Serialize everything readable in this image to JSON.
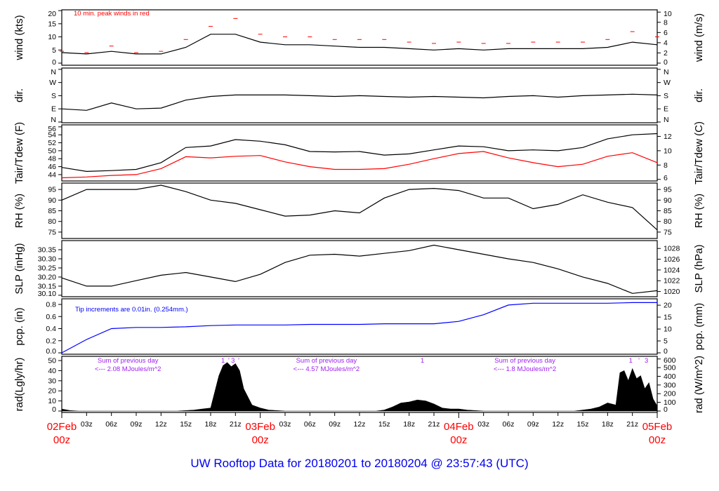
{
  "title": "UW Rooftop Data for 20180201  to  20180204 @ 23:57:43  (UTC)",
  "colors": {
    "primary": "#000000",
    "peak": "#ff0000",
    "dewpoint": "#ff0000",
    "precip": "#0000ff",
    "title": "#0000ee",
    "day_labels": "#ff0000",
    "annotations": "#a020f0"
  },
  "x_axis": {
    "hour_ticks": [
      {
        "h": 3,
        "label": "03z"
      },
      {
        "h": 6,
        "label": "06z"
      },
      {
        "h": 9,
        "label": "09z"
      },
      {
        "h": 12,
        "label": "12z"
      },
      {
        "h": 15,
        "label": "15z"
      },
      {
        "h": 18,
        "label": "18z"
      },
      {
        "h": 21,
        "label": "21z"
      },
      {
        "h": 27,
        "label": "03z"
      },
      {
        "h": 30,
        "label": "06z"
      },
      {
        "h": 33,
        "label": "09z"
      },
      {
        "h": 36,
        "label": "12z"
      },
      {
        "h": 39,
        "label": "15z"
      },
      {
        "h": 42,
        "label": "18z"
      },
      {
        "h": 45,
        "label": "21z"
      },
      {
        "h": 51,
        "label": "03z"
      },
      {
        "h": 54,
        "label": "06z"
      },
      {
        "h": 57,
        "label": "09z"
      },
      {
        "h": 60,
        "label": "12z"
      },
      {
        "h": 63,
        "label": "15z"
      },
      {
        "h": 66,
        "label": "18z"
      },
      {
        "h": 69,
        "label": "21z"
      }
    ],
    "day_ticks": [
      {
        "h": 0,
        "label": "02Feb",
        "sub": "00z"
      },
      {
        "h": 24,
        "label": "03Feb",
        "sub": "00z"
      },
      {
        "h": 48,
        "label": "04Feb",
        "sub": "00z"
      },
      {
        "h": 72,
        "label": "05Feb",
        "sub": "00z"
      }
    ]
  },
  "chart_data": {
    "type": "line",
    "x_unit": "hours since 02Feb 00z",
    "x": [
      0,
      3,
      6,
      9,
      12,
      15,
      18,
      21,
      24,
      27,
      30,
      33,
      36,
      39,
      42,
      45,
      48,
      51,
      54,
      57,
      60,
      63,
      66,
      69,
      72
    ],
    "xlim": [
      0,
      72
    ],
    "panels": [
      {
        "id": "wind",
        "ylabel_left": "wind (kts)",
        "ylabel_right": "wind (m/s)",
        "ylim": [
          -0.8,
          20.3
        ],
        "left_ticks": [
          {
            "v": 0,
            "label": "0"
          },
          {
            "v": 5,
            "label": "5"
          },
          {
            "v": 10,
            "label": "10"
          },
          {
            "v": 15,
            "label": "15"
          },
          {
            "v": 20,
            "label": "20"
          }
        ],
        "right_ticks": [
          {
            "v": 0,
            "label": "0"
          },
          {
            "v": 2,
            "label": "2"
          },
          {
            "v": 4,
            "label": "4"
          },
          {
            "v": 6,
            "label": "6"
          },
          {
            "v": 8,
            "label": "8"
          },
          {
            "v": 10,
            "label": "10"
          }
        ],
        "legend": "10 min. peak winds in red",
        "series": [
          {
            "name": "wind",
            "style": "line",
            "color": "#000000",
            "values": [
              4,
              3.5,
              4.5,
              3.5,
              3.5,
              6,
              11,
              11,
              8,
              7,
              7,
              6.5,
              6,
              6,
              5.5,
              5,
              5.5,
              5,
              5.5,
              5.5,
              5.5,
              5.5,
              6,
              8,
              7
            ]
          },
          {
            "name": "10 min. peak",
            "style": "dash",
            "color": "#ff0000",
            "values": [
              4.5,
              4,
              6.5,
              4,
              4.5,
              9,
              14,
              17,
              11,
              10,
              10,
              9,
              9,
              9,
              8,
              7.5,
              8,
              7.5,
              7.5,
              8,
              8,
              8,
              9,
              12,
              10
            ]
          }
        ]
      },
      {
        "id": "dir",
        "ylabel_left": "dir.",
        "ylabel_right": "dir.",
        "ylim": [
          -5,
          369
        ],
        "left_ticks": [
          {
            "v": 0,
            "label": "N"
          },
          {
            "v": 90,
            "label": "E"
          },
          {
            "v": 180,
            "label": "S"
          },
          {
            "v": 270,
            "label": "W"
          },
          {
            "v": 360,
            "label": "N"
          }
        ],
        "right_ticks": [
          {
            "v": 0,
            "label": "N"
          },
          {
            "v": 90,
            "label": "E"
          },
          {
            "v": 180,
            "label": "S"
          },
          {
            "v": 270,
            "label": "W"
          },
          {
            "v": 360,
            "label": "N"
          }
        ],
        "series": [
          {
            "name": "direction",
            "style": "line",
            "color": "#000000",
            "values": [
              90,
              80,
              130,
              90,
              95,
              150,
              175,
              185,
              185,
              185,
              180,
              175,
              180,
              175,
              170,
              175,
              170,
              165,
              175,
              180,
              170,
              180,
              185,
              190,
              185
            ]
          }
        ]
      },
      {
        "id": "temp",
        "ylabel_left": "Tair/Tdew (F)",
        "ylabel_right": "Tair/Tdew (C)",
        "ylim": [
          42.4,
          56.5
        ],
        "left_ticks": [
          {
            "v": 44,
            "label": "44"
          },
          {
            "v": 46,
            "label": "46"
          },
          {
            "v": 48,
            "label": "48"
          },
          {
            "v": 50,
            "label": "50"
          },
          {
            "v": 52,
            "label": "52"
          },
          {
            "v": 54,
            "label": "54"
          },
          {
            "v": 56,
            "label": "56"
          }
        ],
        "right_ticks": [
          {
            "v": 6,
            "label": "6"
          },
          {
            "v": 8,
            "label": "8"
          },
          {
            "v": 10,
            "label": "10"
          },
          {
            "v": 12,
            "label": "12"
          }
        ],
        "series": [
          {
            "name": "Tair",
            "style": "line",
            "color": "#000000",
            "values": [
              45.8,
              44.8,
              45,
              45.3,
              47,
              50.8,
              51.2,
              52.8,
              52.4,
              51.5,
              49.8,
              49.7,
              49.8,
              48.9,
              49.2,
              50.2,
              51.2,
              51,
              50,
              50.2,
              50,
              50.8,
              53,
              54,
              54.3
            ]
          },
          {
            "name": "Tdew",
            "style": "line",
            "color": "#ff0000",
            "values": [
              43.2,
              43.4,
              43.8,
              44,
              45.5,
              48.5,
              48.2,
              48.6,
              48.8,
              47.2,
              46,
              45.3,
              45.3,
              45.5,
              46.6,
              48,
              49.3,
              49.8,
              48.2,
              47,
              46,
              46.6,
              48.6,
              49.5,
              47
            ]
          }
        ]
      },
      {
        "id": "rh",
        "ylabel_left": "RH (%)",
        "ylabel_right": "RH (%)",
        "ylim": [
          72,
          98
        ],
        "left_ticks": [
          {
            "v": 75,
            "label": "75"
          },
          {
            "v": 80,
            "label": "80"
          },
          {
            "v": 85,
            "label": "85"
          },
          {
            "v": 90,
            "label": "90"
          },
          {
            "v": 95,
            "label": "95"
          }
        ],
        "right_ticks": [
          {
            "v": 75,
            "label": "75"
          },
          {
            "v": 80,
            "label": "80"
          },
          {
            "v": 85,
            "label": "85"
          },
          {
            "v": 90,
            "label": "90"
          },
          {
            "v": 95,
            "label": "95"
          }
        ],
        "series": [
          {
            "name": "RH",
            "style": "line",
            "color": "#000000",
            "values": [
              90,
              95,
              95,
              95,
              97,
              94,
              90,
              88.5,
              85.5,
              82.5,
              83,
              85,
              84,
              91,
              95,
              95.5,
              94.5,
              91,
              91,
              86,
              88,
              92.5,
              89,
              86.5,
              76
            ]
          }
        ]
      },
      {
        "id": "slp",
        "ylabel_left": "SLP (inHg)",
        "ylabel_right": "SLP (hPa)",
        "ylim": [
          30.092,
          30.4
        ],
        "left_ticks": [
          {
            "v": 30.1,
            "label": "30.10"
          },
          {
            "v": 30.15,
            "label": "30.15"
          },
          {
            "v": 30.2,
            "label": "30.20"
          },
          {
            "v": 30.25,
            "label": "30.25"
          },
          {
            "v": 30.3,
            "label": "30.30"
          },
          {
            "v": 30.35,
            "label": "30.35"
          }
        ],
        "right_ticks": [
          {
            "v": 1020,
            "label": "1020"
          },
          {
            "v": 1022,
            "label": "1022"
          },
          {
            "v": 1024,
            "label": "1024"
          },
          {
            "v": 1026,
            "label": "1026"
          },
          {
            "v": 1028,
            "label": "1028"
          }
        ],
        "series": [
          {
            "name": "SLP",
            "style": "line",
            "color": "#000000",
            "values": [
              30.195,
              30.15,
              30.15,
              30.18,
              30.21,
              30.225,
              30.2,
              30.175,
              30.215,
              30.28,
              30.32,
              30.325,
              30.315,
              30.33,
              30.345,
              30.375,
              30.35,
              30.325,
              30.3,
              30.28,
              30.245,
              30.2,
              30.165,
              30.11,
              30.125
            ]
          }
        ]
      },
      {
        "id": "pcp",
        "ylabel_left": "pcp. (in)",
        "ylabel_right": "pcp. (mm)",
        "ylim": [
          -0.023,
          0.893
        ],
        "left_ticks": [
          {
            "v": 0,
            "label": "0.0"
          },
          {
            "v": 0.2,
            "label": "0.2"
          },
          {
            "v": 0.4,
            "label": "0.4"
          },
          {
            "v": 0.6,
            "label": "0.6"
          },
          {
            "v": 0.8,
            "label": "0.8"
          }
        ],
        "right_ticks": [
          {
            "v": 0,
            "label": "0"
          },
          {
            "v": 5,
            "label": "5"
          },
          {
            "v": 10,
            "label": "10"
          },
          {
            "v": 15,
            "label": "15"
          },
          {
            "v": 20,
            "label": "20"
          }
        ],
        "legend": "Tip increments are 0.01in. (0.254mm.)",
        "series": [
          {
            "name": "precipitation",
            "style": "line",
            "color": "#0000ff",
            "values": [
              0,
              0.22,
              0.4,
              0.42,
              0.42,
              0.43,
              0.45,
              0.46,
              0.46,
              0.46,
              0.47,
              0.47,
              0.47,
              0.48,
              0.48,
              0.48,
              0.52,
              0.63,
              0.79,
              0.82,
              0.82,
              0.82,
              0.82,
              0.83,
              0.83
            ]
          }
        ]
      },
      {
        "id": "rad",
        "ylabel_left": "rad(Lgly/hr)",
        "ylabel_right": "rad (W/m^2)",
        "ylim": [
          -1.4,
          54.2
        ],
        "left_ticks": [
          {
            "v": 0,
            "label": "0"
          },
          {
            "v": 10,
            "label": "10"
          },
          {
            "v": 20,
            "label": "20"
          },
          {
            "v": 30,
            "label": "30"
          },
          {
            "v": 40,
            "label": "40"
          },
          {
            "v": 50,
            "label": "50"
          }
        ],
        "right_ticks": [
          {
            "v": 0,
            "label": "0"
          },
          {
            "v": 100,
            "label": "100"
          },
          {
            "v": 200,
            "label": "200"
          },
          {
            "v": 300,
            "label": "300"
          },
          {
            "v": 400,
            "label": "400"
          },
          {
            "v": 500,
            "label": "500"
          },
          {
            "v": 600,
            "label": "600"
          }
        ],
        "series": [
          {
            "name": "radiation",
            "style": "area",
            "color": "#000000",
            "x": [
              0,
              1,
              2,
              14,
              15,
              16,
              17,
              18,
              19,
              19.5,
              20,
              20.5,
              21,
              21.5,
              22,
              23,
              24,
              25,
              26,
              27,
              38,
              39,
              40,
              41,
              42,
              43,
              44,
              45,
              46,
              47,
              48,
              49,
              50,
              51,
              62,
              63,
              64,
              65,
              66,
              67,
              67.5,
              68,
              68.5,
              69,
              69.5,
              70,
              70.5,
              71,
              71.5,
              72
            ],
            "values": [
              2,
              0.5,
              0,
              0,
              0.5,
              1,
              2,
              3,
              35,
              45,
              48,
              44,
              47,
              40,
              22,
              6,
              3,
              1,
              0.5,
              0,
              0,
              1,
              4,
              8,
              9,
              11,
              10,
              7,
              3,
              2,
              2,
              1,
              0.5,
              0,
              0,
              1,
              2,
              4,
              8,
              6,
              38,
              40,
              30,
              42,
              32,
              35,
              22,
              28,
              12,
              5
            ]
          }
        ],
        "annotations": [
          {
            "h": 8,
            "line1": "Sum of previous day",
            "line2": "<--- 2.08 MJoules/m^2"
          },
          {
            "h": 32,
            "line1": "Sum of previous day",
            "line2": "<--- 4.57 MJoules/m^2"
          },
          {
            "h": 56,
            "line1": "Sum of previous day",
            "line2": "<--- 1.8 MJoules/m^2"
          }
        ],
        "markers": [
          {
            "h": 19.5,
            "label": "1"
          },
          {
            "h": 20.2,
            "label": "'"
          },
          {
            "h": 20.7,
            "label": "3"
          },
          {
            "h": 21.4,
            "label": "'"
          },
          {
            "h": 43.6,
            "label": "1"
          },
          {
            "h": 68.8,
            "label": "1"
          },
          {
            "h": 69.8,
            "label": "'"
          },
          {
            "h": 70.7,
            "label": "3"
          }
        ]
      }
    ]
  }
}
